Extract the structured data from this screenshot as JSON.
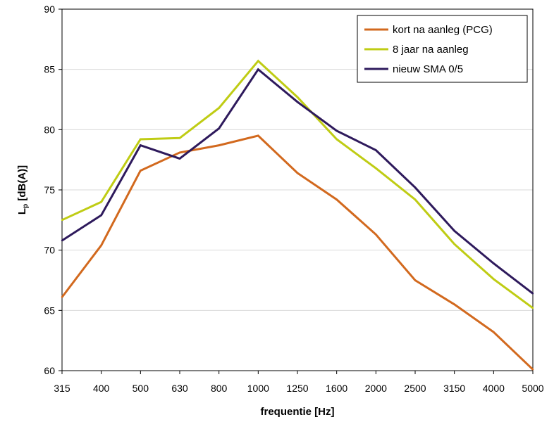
{
  "chart_data": {
    "type": "line",
    "xlabel": "frequentie [Hz]",
    "ylabel_main": "L",
    "ylabel_sub": "p",
    "ylabel_rest": " [dB(A)]",
    "categories": [
      "315",
      "400",
      "500",
      "630",
      "800",
      "1000",
      "1250",
      "1600",
      "2000",
      "2500",
      "3150",
      "4000",
      "5000"
    ],
    "ylim": [
      60,
      90
    ],
    "yticks": [
      60,
      65,
      70,
      75,
      80,
      85,
      90
    ],
    "grid": true,
    "legend_position": "top-right",
    "series": [
      {
        "name": "kort na aanleg (PCG)",
        "color": "#D2691E",
        "values": [
          66.1,
          70.4,
          76.6,
          78.1,
          78.7,
          79.5,
          76.4,
          74.2,
          71.3,
          67.5,
          65.5,
          63.2,
          60.1
        ]
      },
      {
        "name": "8 jaar na aanleg",
        "color": "#BFCC14",
        "values": [
          72.5,
          74.0,
          79.2,
          79.3,
          81.8,
          85.7,
          82.7,
          79.2,
          76.8,
          74.2,
          70.5,
          67.6,
          65.2
        ]
      },
      {
        "name": "nieuw SMA 0/5",
        "color": "#2E1A5C",
        "values": [
          70.8,
          72.9,
          78.7,
          77.6,
          80.1,
          85.0,
          82.3,
          79.9,
          78.3,
          75.2,
          71.6,
          68.9,
          66.4
        ]
      }
    ]
  }
}
